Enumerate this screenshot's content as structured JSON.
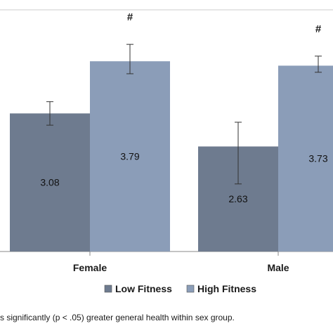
{
  "chart_data": {
    "type": "bar",
    "categories": [
      "Female",
      "Male"
    ],
    "series": [
      {
        "name": "Low Fitness",
        "color": "#6e7b8f",
        "values": [
          3.08,
          2.63
        ],
        "error": [
          [
            2.92,
            3.24
          ],
          [
            2.12,
            2.96
          ]
        ],
        "value_labels": [
          "3.08",
          "2.63"
        ]
      },
      {
        "name": "High Fitness",
        "color": "#8b9db8",
        "values": [
          3.79,
          3.73
        ],
        "error": [
          [
            3.62,
            4.02
          ],
          [
            3.64,
            3.86
          ]
        ],
        "value_labels": [
          "3.79",
          "3.73"
        ]
      }
    ],
    "annotations": [
      {
        "category": "Female",
        "series": "High Fitness",
        "symbol": "#"
      },
      {
        "category": "Male",
        "series": "High Fitness",
        "symbol": "#"
      }
    ],
    "legend": {
      "position": "bottom",
      "entries": [
        "Low Fitness",
        "High Fitness"
      ]
    },
    "footnote": "s significantly (p < .05) greater general health within sex group.",
    "ylim": [
      1.2,
      4.49
    ],
    "grid": false,
    "colors": {
      "axis": "#888888",
      "frame": "#cccccc",
      "text": "#1a1a1a",
      "error_bar": "#333333"
    }
  }
}
